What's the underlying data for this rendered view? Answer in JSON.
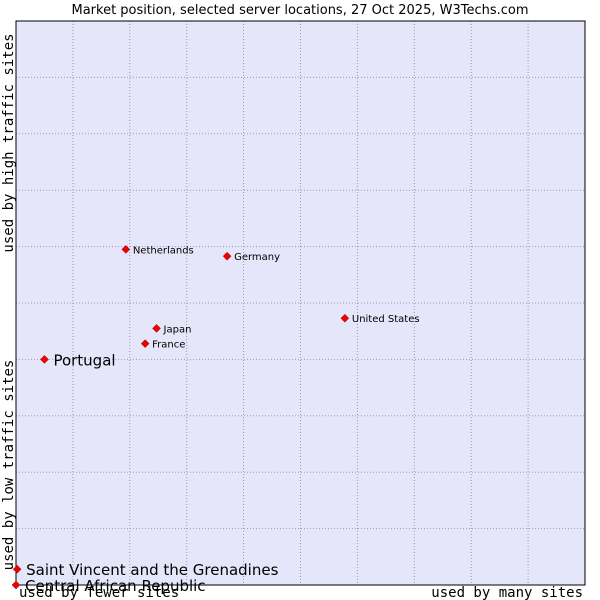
{
  "chart_data": {
    "type": "scatter",
    "title": "Market position, selected server locations, 27 Oct 2025, W3Techs.com",
    "xlabel_low": "used by fewer sites",
    "xlabel_high": "used by many sites",
    "ylabel_low": "used by low traffic sites",
    "ylabel_high": "used by high traffic sites",
    "xlim": [
      0,
      100
    ],
    "ylim": [
      0,
      100
    ],
    "grid": true,
    "colors": {
      "plot_bg": "#e6e6fa",
      "grid": "#9999bb",
      "point": "#ee0000",
      "frame": "#000000"
    },
    "points": [
      {
        "label": "Netherlands",
        "x": 19.3,
        "y": 59.5,
        "emphasis": "small"
      },
      {
        "label": "Germany",
        "x": 37.1,
        "y": 58.3,
        "emphasis": "small"
      },
      {
        "label": "United States",
        "x": 57.8,
        "y": 47.3,
        "emphasis": "small"
      },
      {
        "label": "Japan",
        "x": 24.7,
        "y": 45.5,
        "emphasis": "small"
      },
      {
        "label": "France",
        "x": 22.7,
        "y": 42.8,
        "emphasis": "small"
      },
      {
        "label": "Portugal",
        "x": 5.0,
        "y": 40.0,
        "emphasis": "large"
      },
      {
        "label": "Saint Vincent and the Grenadines",
        "x": 0.2,
        "y": 2.8,
        "emphasis": "large"
      },
      {
        "label": "Central African Republic",
        "x": 0.0,
        "y": 0.0,
        "emphasis": "large"
      }
    ]
  }
}
